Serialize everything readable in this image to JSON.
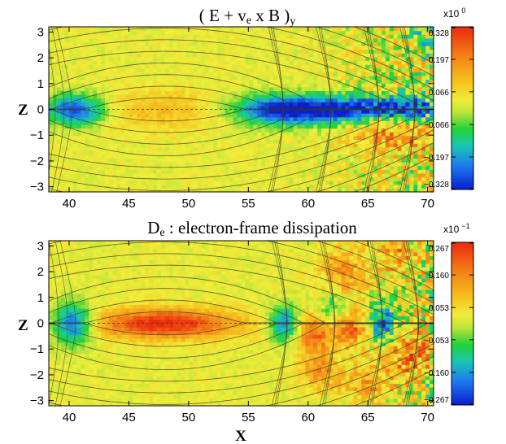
{
  "chart_data": [
    {
      "type": "heatmap",
      "title": "( E + ve x B )y",
      "title_parts": {
        "pre": "( E + v",
        "sub": "e",
        "post": " x B )",
        "sub2": "y"
      },
      "ylabel": "Z",
      "x_ticks": [
        "40",
        "45",
        "50",
        "55",
        "60",
        "65",
        "70"
      ],
      "y_ticks": [
        "3",
        "2",
        "1",
        "0",
        "−1",
        "−2",
        "−3"
      ],
      "x_range": [
        38.3,
        70.5
      ],
      "y_range": [
        -3.2,
        3.2
      ],
      "colorbar": {
        "scale_prefix": "x10",
        "scale_exponent": "0",
        "ticks": [
          "0.328",
          "0.197",
          "0.066",
          "−0.066",
          "−0.197",
          "−0.328"
        ],
        "tick_values": [
          0.328,
          0.197,
          0.066,
          -0.066,
          -0.197,
          -0.328
        ],
        "range": [
          -0.328,
          0.328
        ]
      },
      "features": [
        {
          "x": 40.5,
          "z": 0,
          "value": -0.3,
          "sx": 1.8,
          "sz": 0.42
        },
        {
          "x": 47.5,
          "z": 0,
          "value": 0.09,
          "sx": 3.5,
          "sz": 0.55
        },
        {
          "x": 57.0,
          "z": 0,
          "value": -0.26,
          "sx": 2.5,
          "sz": 0.4
        },
        {
          "x": 61.5,
          "z": 0,
          "value": -0.3,
          "sx": 3.0,
          "sz": 0.38
        },
        {
          "x": 66.0,
          "z": 0.05,
          "value": -0.22,
          "sx": 2.5,
          "sz": 0.35
        },
        {
          "x": 68.8,
          "z": 0,
          "value": -0.24,
          "sx": 1.2,
          "sz": 0.38
        },
        {
          "x": 65.5,
          "z": -0.9,
          "value": 0.1,
          "sx": 2.0,
          "sz": 0.5
        },
        {
          "x": 68.5,
          "z": -1.0,
          "value": 0.12,
          "sx": 1.4,
          "sz": 0.5
        },
        {
          "x": 69.5,
          "z": 2.8,
          "value": -0.12,
          "sx": 0.6,
          "sz": 0.4
        }
      ]
    },
    {
      "type": "heatmap",
      "title": "De : electron-frame dissipation",
      "title_parts": {
        "pre": "D",
        "sub": "e",
        "post": " : electron-frame dissipation",
        "sub2": ""
      },
      "xlabel": "X",
      "ylabel": "Z",
      "x_ticks": [
        "40",
        "45",
        "50",
        "55",
        "60",
        "65",
        "70"
      ],
      "y_ticks": [
        "3",
        "2",
        "1",
        "0",
        "−1",
        "−2",
        "−3"
      ],
      "x_range": [
        38.3,
        70.5
      ],
      "y_range": [
        -3.2,
        3.2
      ],
      "colorbar": {
        "scale_prefix": "x10",
        "scale_exponent": "−1",
        "ticks": [
          "0.267",
          "0.160",
          "0.053",
          "−0.053",
          "−0.160",
          "−0.267"
        ],
        "tick_values": [
          0.267,
          0.16,
          0.053,
          -0.053,
          -0.16,
          -0.267
        ],
        "range": [
          -0.267,
          0.267
        ]
      },
      "features": [
        {
          "x": 40.3,
          "z": 0,
          "value": -0.24,
          "sx": 1.2,
          "sz": 0.55
        },
        {
          "x": 48.0,
          "z": 0,
          "value": 0.25,
          "sx": 4.2,
          "sz": 0.4
        },
        {
          "x": 58.0,
          "z": 0,
          "value": -0.2,
          "sx": 0.9,
          "sz": 0.5
        },
        {
          "x": 60.5,
          "z": -0.4,
          "value": 0.18,
          "sx": 1.0,
          "sz": 0.5
        },
        {
          "x": 62.0,
          "z": 0.6,
          "value": -0.1,
          "sx": 0.8,
          "sz": 0.5
        },
        {
          "x": 63.5,
          "z": -0.2,
          "value": 0.17,
          "sx": 1.0,
          "sz": 0.5
        },
        {
          "x": 66.3,
          "z": 0,
          "value": -0.22,
          "sx": 0.8,
          "sz": 0.5
        },
        {
          "x": 68.5,
          "z": -1.2,
          "value": 0.15,
          "sx": 1.3,
          "sz": 0.6
        },
        {
          "x": 63.0,
          "z": 2.0,
          "value": 0.12,
          "sx": 1.3,
          "sz": 0.6
        },
        {
          "x": 61.0,
          "z": -1.8,
          "value": 0.12,
          "sx": 1.2,
          "sz": 0.5
        },
        {
          "x": 65.0,
          "z": -2.3,
          "value": 0.1,
          "sx": 1.5,
          "sz": 0.5
        },
        {
          "x": 67.5,
          "z": 2.6,
          "value": 0.12,
          "sx": 1.0,
          "sz": 0.5
        }
      ]
    }
  ]
}
